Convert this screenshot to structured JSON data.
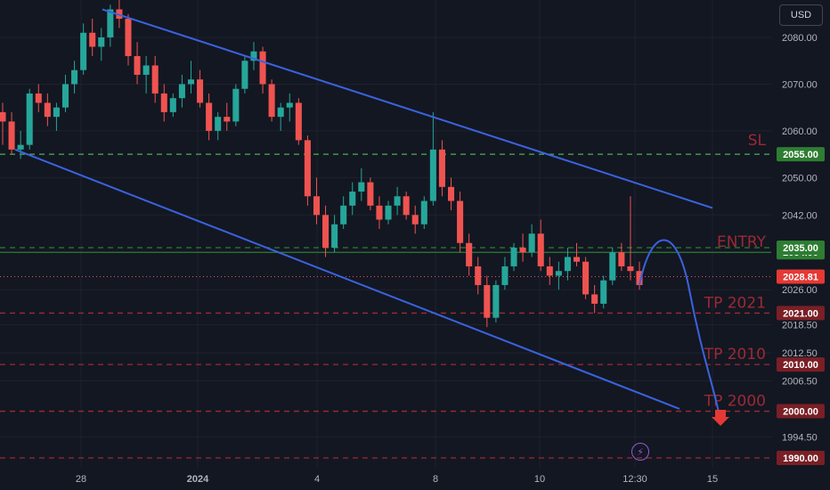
{
  "currency_button": "USD",
  "flash_icon": "lightning-icon",
  "colors": {
    "background": "#131722",
    "up": "#26a69a",
    "down": "#ef5350",
    "channel": "#3a63e0",
    "entry": "#2e7d32",
    "sl": "#4caf50",
    "tp": "#9c2a33"
  },
  "chart_data": {
    "type": "candlestick",
    "title": "",
    "y_axis": {
      "min": 1988,
      "max": 2090,
      "scale": "linear",
      "ticks": [
        "2080.00",
        "2070.00",
        "2060.00",
        "2050.00",
        "2042.00",
        "2026.00",
        "2018.50",
        "2012.50",
        "2006.50",
        "1994.50"
      ]
    },
    "x_axis": {
      "ticks": [
        "28",
        "2024",
        "4",
        "8",
        "10",
        "12:30",
        "15"
      ]
    },
    "levels": [
      {
        "name": "SL",
        "value": 2055,
        "label": "SL",
        "badge": "2055.00"
      },
      {
        "name": "ENTRY",
        "value": 2034,
        "label": "ENTRY",
        "badge": "2034.00"
      },
      {
        "name": "ENTRY-upper",
        "value": 2035,
        "label": "",
        "badge": "2035.00"
      },
      {
        "name": "TP 2021",
        "value": 2021,
        "label": "TP 2021",
        "badge": "2021.00"
      },
      {
        "name": "TP 2010",
        "value": 2010,
        "label": "TP 2010",
        "badge": "2010.00"
      },
      {
        "name": "TP 2000",
        "value": 2000,
        "label": "TP 2000",
        "badge": "2000.00"
      },
      {
        "name": "bottom",
        "value": 1990,
        "label": "",
        "badge": "1990.00"
      }
    ],
    "current_price": {
      "value": 2028.81,
      "badge": "2028.81"
    },
    "channel_lines": {
      "upper": [
        [
          0.0,
          2086
        ],
        [
          0.57,
          2043.5
        ]
      ],
      "lower": [
        [
          0.0,
          2056
        ],
        [
          0.545,
          2000.5
        ]
      ]
    },
    "projection": [
      [
        0.0,
        2027
      ],
      [
        0.04,
        2037
      ],
      [
        0.08,
        2026
      ],
      [
        0.11,
        2010
      ],
      [
        0.13,
        1998
      ]
    ],
    "candles": [
      [
        2064,
        2066,
        2057,
        2062
      ],
      [
        2062,
        2064,
        2055,
        2056
      ],
      [
        2056,
        2060,
        2054,
        2057
      ],
      [
        2057,
        2069,
        2056,
        2068
      ],
      [
        2068,
        2070,
        2064,
        2066
      ],
      [
        2066,
        2068,
        2061,
        2063
      ],
      [
        2063,
        2066,
        2060,
        2065
      ],
      [
        2065,
        2072,
        2064,
        2070
      ],
      [
        2070,
        2075,
        2068,
        2073
      ],
      [
        2073,
        2083,
        2072,
        2081
      ],
      [
        2081,
        2084,
        2076,
        2078
      ],
      [
        2078,
        2082,
        2075,
        2080
      ],
      [
        2080,
        2087,
        2078,
        2086
      ],
      [
        2086,
        2088,
        2082,
        2084
      ],
      [
        2084,
        2085,
        2074,
        2076
      ],
      [
        2076,
        2079,
        2070,
        2072
      ],
      [
        2072,
        2076,
        2068,
        2074
      ],
      [
        2074,
        2076,
        2066,
        2068
      ],
      [
        2068,
        2070,
        2062,
        2064
      ],
      [
        2064,
        2068,
        2063,
        2067
      ],
      [
        2067,
        2072,
        2065,
        2070
      ],
      [
        2070,
        2075,
        2068,
        2071
      ],
      [
        2071,
        2073,
        2065,
        2066
      ],
      [
        2066,
        2068,
        2058,
        2060
      ],
      [
        2060,
        2064,
        2058,
        2063
      ],
      [
        2063,
        2066,
        2060,
        2062
      ],
      [
        2062,
        2070,
        2061,
        2069
      ],
      [
        2069,
        2076,
        2068,
        2075
      ],
      [
        2075,
        2079,
        2073,
        2077
      ],
      [
        2077,
        2078,
        2068,
        2070
      ],
      [
        2070,
        2071,
        2062,
        2063
      ],
      [
        2063,
        2066,
        2060,
        2065
      ],
      [
        2065,
        2068,
        2062,
        2066
      ],
      [
        2066,
        2067,
        2057,
        2058
      ],
      [
        2058,
        2059,
        2044,
        2046
      ],
      [
        2046,
        2050,
        2040,
        2042
      ],
      [
        2042,
        2044,
        2033,
        2035
      ],
      [
        2035,
        2042,
        2034,
        2040
      ],
      [
        2040,
        2046,
        2039,
        2044
      ],
      [
        2044,
        2049,
        2042,
        2047
      ],
      [
        2047,
        2052,
        2045,
        2049
      ],
      [
        2049,
        2050,
        2043,
        2044
      ],
      [
        2044,
        2046,
        2039,
        2041
      ],
      [
        2041,
        2045,
        2040,
        2044
      ],
      [
        2044,
        2048,
        2042,
        2046
      ],
      [
        2046,
        2047,
        2041,
        2042
      ],
      [
        2042,
        2044,
        2038,
        2040
      ],
      [
        2040,
        2046,
        2039,
        2045
      ],
      [
        2045,
        2064,
        2044,
        2056
      ],
      [
        2056,
        2058,
        2046,
        2048
      ],
      [
        2048,
        2050,
        2043,
        2045
      ],
      [
        2045,
        2047,
        2034,
        2036
      ],
      [
        2036,
        2038,
        2029,
        2031
      ],
      [
        2031,
        2033,
        2025,
        2027
      ],
      [
        2027,
        2029,
        2018,
        2020
      ],
      [
        2020,
        2028,
        2019,
        2027
      ],
      [
        2027,
        2033,
        2026,
        2031
      ],
      [
        2031,
        2036,
        2030,
        2035
      ],
      [
        2035,
        2038,
        2032,
        2034
      ],
      [
        2034,
        2040,
        2033,
        2038
      ],
      [
        2038,
        2041,
        2030,
        2031
      ],
      [
        2031,
        2033,
        2027,
        2029
      ],
      [
        2029,
        2032,
        2026,
        2030
      ],
      [
        2030,
        2035,
        2028,
        2033
      ],
      [
        2033,
        2036,
        2031,
        2032
      ],
      [
        2032,
        2033,
        2024,
        2025
      ],
      [
        2025,
        2027,
        2021,
        2023
      ],
      [
        2023,
        2029,
        2022,
        2028
      ],
      [
        2028,
        2035,
        2027,
        2034
      ],
      [
        2034,
        2036,
        2030,
        2031
      ],
      [
        2031,
        2046,
        2028,
        2030
      ],
      [
        2030,
        2032,
        2026,
        2027
      ]
    ]
  }
}
